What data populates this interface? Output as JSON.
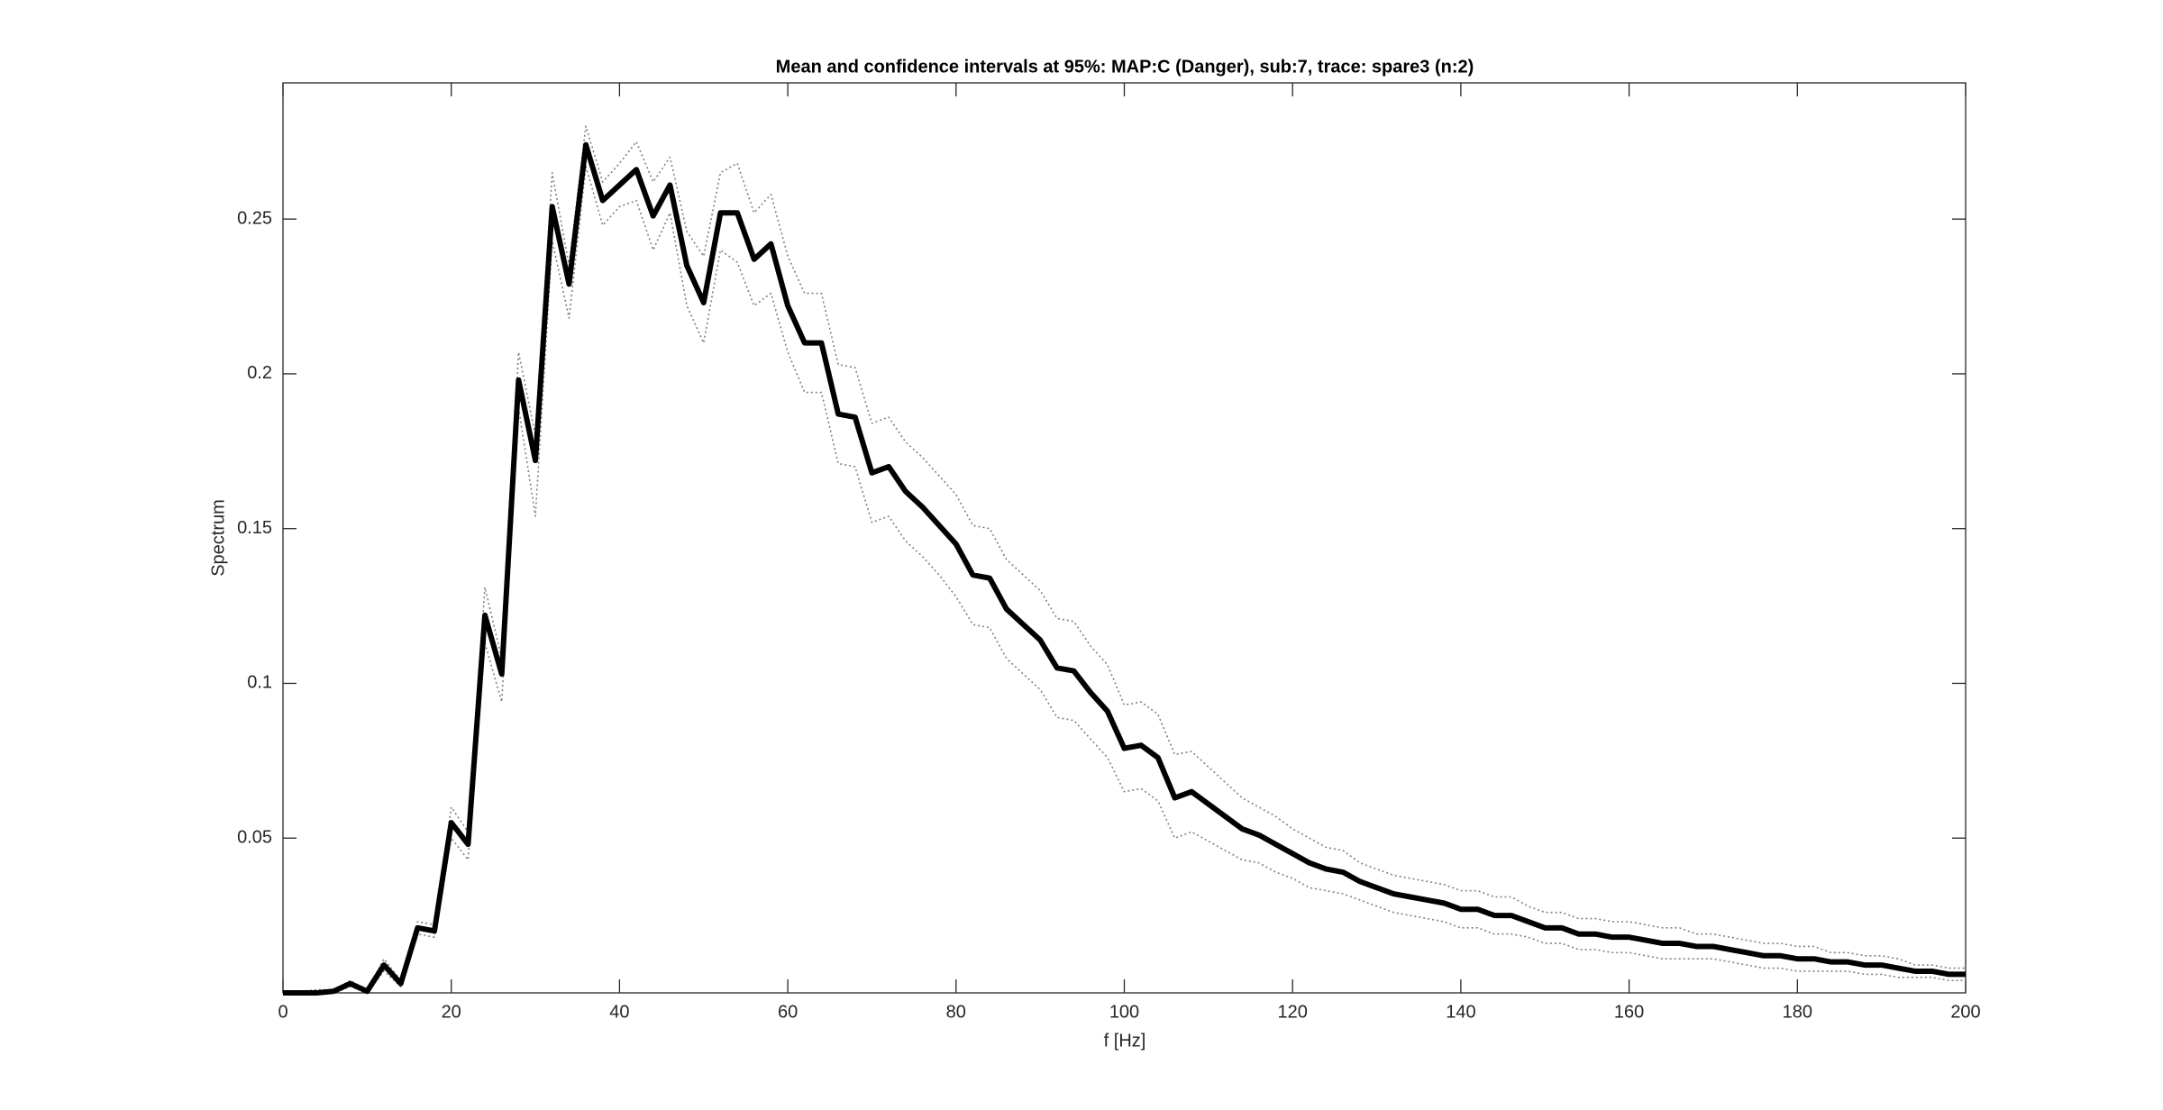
{
  "chart_data": {
    "type": "line",
    "title": "Mean and confidence intervals at 95%: MAP:C (Danger), sub:7, trace: spare3 (n:2)",
    "x_label": "f [Hz]",
    "y_label": "Spectrum",
    "x": [
      0,
      2,
      4,
      6,
      8,
      10,
      12,
      14,
      16,
      18,
      20,
      22,
      24,
      26,
      28,
      30,
      32,
      34,
      36,
      38,
      40,
      42,
      44,
      46,
      48,
      50,
      52,
      54,
      56,
      58,
      60,
      62,
      64,
      66,
      68,
      70,
      72,
      74,
      76,
      78,
      80,
      82,
      84,
      86,
      88,
      90,
      92,
      94,
      96,
      98,
      100,
      102,
      104,
      106,
      108,
      110,
      112,
      114,
      116,
      118,
      120,
      122,
      124,
      126,
      128,
      130,
      132,
      134,
      136,
      138,
      140,
      142,
      144,
      146,
      148,
      150,
      152,
      154,
      156,
      158,
      160,
      162,
      164,
      166,
      168,
      170,
      172,
      174,
      176,
      178,
      180,
      182,
      184,
      186,
      188,
      190,
      192,
      194,
      196,
      198,
      200
    ],
    "series": [
      {
        "color": "#000000",
        "style": "solid",
        "values": [
          0,
          0,
          0,
          0.0005,
          0.003,
          0.0005,
          0.009,
          0.003,
          0.021,
          0.02,
          0.055,
          0.048,
          0.122,
          0.103,
          0.198,
          0.172,
          0.254,
          0.229,
          0.274,
          0.256,
          0.261,
          0.266,
          0.251,
          0.261,
          0.235,
          0.223,
          0.252,
          0.252,
          0.237,
          0.242,
          0.222,
          0.21,
          0.21,
          0.187,
          0.186,
          0.168,
          0.17,
          0.162,
          0.157,
          0.151,
          0.145,
          0.135,
          0.134,
          0.124,
          0.119,
          0.114,
          0.105,
          0.104,
          0.097,
          0.091,
          0.079,
          0.08,
          0.076,
          0.063,
          0.065,
          0.061,
          0.057,
          0.053,
          0.051,
          0.048,
          0.045,
          0.042,
          0.04,
          0.039,
          0.036,
          0.034,
          0.032,
          0.031,
          0.03,
          0.029,
          0.027,
          0.027,
          0.025,
          0.025,
          0.023,
          0.021,
          0.021,
          0.019,
          0.019,
          0.018,
          0.018,
          0.017,
          0.016,
          0.016,
          0.015,
          0.015,
          0.014,
          0.013,
          0.012,
          0.012,
          0.011,
          0.011,
          0.01,
          0.01,
          0.009,
          0.009,
          0.008,
          0.007,
          0.007,
          0.006,
          0.006
        ]
      },
      {
        "color": "#808080",
        "style": "dotted",
        "values": [
          0.0005,
          0.0005,
          0.001,
          0.001,
          0.004,
          0.001,
          0.011,
          0.004,
          0.023,
          0.022,
          0.06,
          0.052,
          0.131,
          0.108,
          0.207,
          0.18,
          0.265,
          0.235,
          0.28,
          0.262,
          0.268,
          0.275,
          0.262,
          0.27,
          0.246,
          0.238,
          0.265,
          0.268,
          0.252,
          0.258,
          0.238,
          0.226,
          0.226,
          0.203,
          0.202,
          0.184,
          0.186,
          0.178,
          0.173,
          0.167,
          0.161,
          0.151,
          0.15,
          0.14,
          0.135,
          0.13,
          0.121,
          0.12,
          0.112,
          0.106,
          0.093,
          0.094,
          0.09,
          0.077,
          0.078,
          0.073,
          0.068,
          0.063,
          0.06,
          0.057,
          0.053,
          0.05,
          0.047,
          0.046,
          0.042,
          0.04,
          0.038,
          0.037,
          0.036,
          0.035,
          0.033,
          0.033,
          0.031,
          0.031,
          0.028,
          0.026,
          0.026,
          0.024,
          0.024,
          0.023,
          0.023,
          0.022,
          0.021,
          0.021,
          0.019,
          0.019,
          0.018,
          0.017,
          0.016,
          0.016,
          0.015,
          0.015,
          0.013,
          0.013,
          0.012,
          0.012,
          0.011,
          0.009,
          0.009,
          0.008,
          0.008
        ]
      },
      {
        "color": "#808080",
        "style": "dotted",
        "values": [
          0,
          0,
          0,
          0,
          0.002,
          0,
          0.007,
          0.002,
          0.019,
          0.018,
          0.05,
          0.043,
          0.113,
          0.094,
          0.189,
          0.154,
          0.243,
          0.218,
          0.267,
          0.248,
          0.254,
          0.256,
          0.24,
          0.252,
          0.222,
          0.21,
          0.24,
          0.236,
          0.222,
          0.226,
          0.207,
          0.194,
          0.194,
          0.171,
          0.17,
          0.152,
          0.154,
          0.146,
          0.141,
          0.135,
          0.128,
          0.119,
          0.118,
          0.108,
          0.103,
          0.098,
          0.089,
          0.088,
          0.082,
          0.076,
          0.065,
          0.066,
          0.062,
          0.05,
          0.052,
          0.049,
          0.046,
          0.043,
          0.042,
          0.039,
          0.037,
          0.034,
          0.033,
          0.032,
          0.03,
          0.028,
          0.026,
          0.025,
          0.024,
          0.023,
          0.021,
          0.021,
          0.019,
          0.019,
          0.018,
          0.016,
          0.016,
          0.014,
          0.014,
          0.013,
          0.013,
          0.012,
          0.011,
          0.011,
          0.011,
          0.011,
          0.01,
          0.009,
          0.008,
          0.008,
          0.007,
          0.007,
          0.007,
          0.007,
          0.006,
          0.006,
          0.005,
          0.005,
          0.005,
          0.004,
          0.004
        ]
      }
    ],
    "xlim": [
      0,
      200
    ],
    "xticks": [
      0,
      20,
      40,
      60,
      80,
      100,
      120,
      140,
      160,
      180,
      200
    ],
    "ylim": [
      0,
      0.294
    ],
    "yticks": [
      0.05,
      0.1,
      0.15,
      0.2,
      0.25
    ]
  }
}
